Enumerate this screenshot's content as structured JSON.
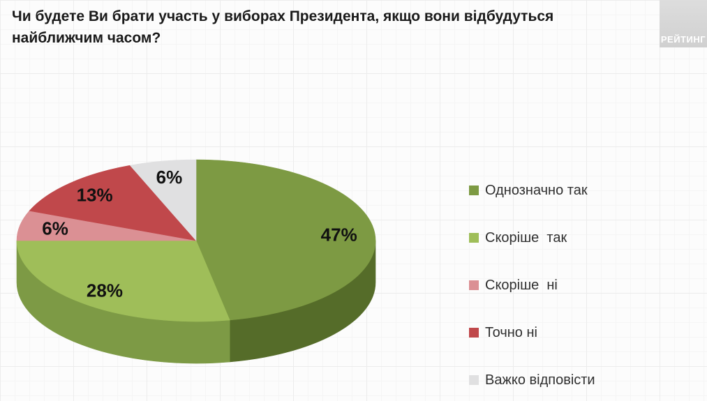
{
  "title": {
    "text": "Чи будете Ви брати участь у виборах Президента, якщо вони відбудуться найближчим часом?"
  },
  "logo": {
    "text": "РЕЙТИНГ"
  },
  "colors": {
    "background": "#fcfcfc",
    "grid_line": "#ececec",
    "title_text": "#1a1a1a",
    "legend_text": "#2f2f2f",
    "data_label_text": "#111111",
    "logo_bg": "#d8d8d8",
    "logo_text": "#ffffff"
  },
  "chart_data": {
    "type": "pie",
    "style": "3d",
    "direction": "clockwise",
    "start_angle_deg": 0,
    "units": "%",
    "legend_position": "right",
    "title": "Чи будете Ви брати участь у виборах Президента, якщо вони відбудуться найближчим часом?",
    "slices": [
      {
        "label": "Однозначно так",
        "value": 47,
        "data_label": "47%",
        "color": "#7d9a43",
        "side_color": "#556c29"
      },
      {
        "label": "Скоріше  так",
        "value": 28,
        "data_label": "28%",
        "color": "#9fbe59",
        "side_color": "#7d9a45"
      },
      {
        "label": "Скоріше  ні",
        "value": 6,
        "data_label": "6%",
        "color": "#db9094",
        "side_color": "#b06e72"
      },
      {
        "label": "Точно ні",
        "value": 13,
        "data_label": "13%",
        "color": "#c0484b",
        "side_color": "#93363a"
      },
      {
        "label": "Важко відповісти",
        "value": 6,
        "data_label": "6%",
        "color": "#e0e0e1",
        "side_color": "#b3b3b5"
      }
    ]
  }
}
